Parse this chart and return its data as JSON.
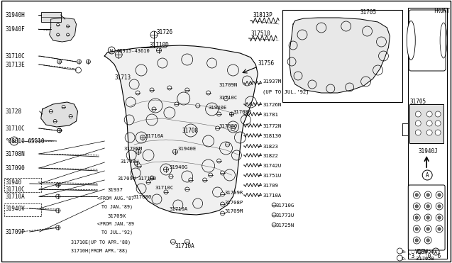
{
  "bg_color": "#ffffff",
  "line_color": "#000000",
  "text_color": "#000000",
  "fig_w": 6.4,
  "fig_h": 3.72,
  "dpi": 100
}
